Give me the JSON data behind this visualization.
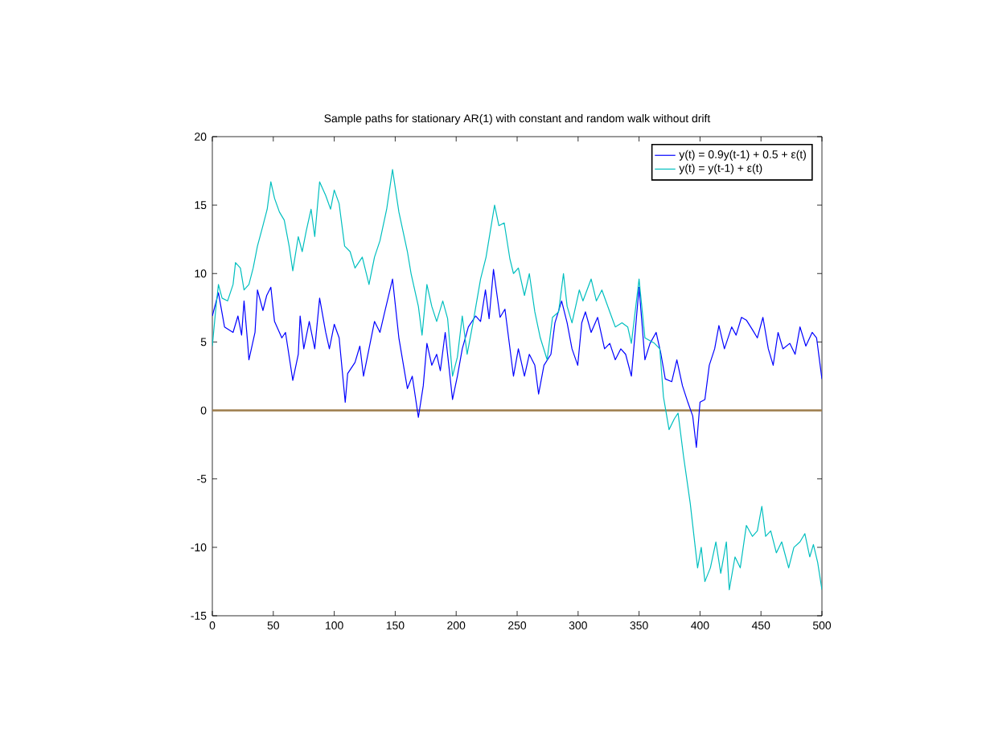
{
  "chart_data": {
    "type": "line",
    "title": "Sample paths for stationary AR(1) with constant and random walk without drift",
    "xlim": [
      0,
      500
    ],
    "xticks": [
      0,
      50,
      100,
      150,
      200,
      250,
      300,
      350,
      400,
      450,
      500
    ],
    "ylim": [
      -15,
      20
    ],
    "yticks": [
      -15,
      -10,
      -5,
      0,
      5,
      10,
      15,
      20
    ],
    "grid": false,
    "legend": "top right",
    "marker": "none",
    "line_style": "solid",
    "ref_lines": [
      {
        "axis": "y",
        "value": 0,
        "color": "#9c7b4a"
      }
    ],
    "series": [
      {
        "name": "y(t) = 0.9y(t-1) + 0.5 + ε(t)",
        "color": "#0000ff",
        "x": [
          0,
          5,
          10,
          17,
          21,
          24,
          26,
          29,
          30,
          35,
          37,
          41.5,
          44.6,
          48,
          51,
          57,
          60,
          66,
          70.5,
          72,
          75,
          79.5,
          84,
          88,
          93,
          96,
          100,
          104,
          109,
          111,
          117,
          121,
          124,
          128.5,
          133,
          137.5,
          140.6,
          147.8,
          153,
          160,
          164,
          169,
          173,
          176,
          180,
          184,
          187,
          191,
          197,
          201,
          205,
          210,
          216,
          220,
          224,
          227,
          230.6,
          236,
          240,
          247,
          251,
          256,
          260,
          264.5,
          267.6,
          272,
          277.7,
          281,
          286.5,
          291,
          295,
          299.7,
          303,
          306,
          310.7,
          316,
          321.7,
          326,
          330.5,
          335,
          339,
          343.7,
          350,
          354.8,
          359,
          364,
          368,
          371.5,
          376.8,
          381,
          385.6,
          390,
          394,
          397,
          400,
          404,
          407.6,
          412,
          415.5,
          420,
          426,
          429.6,
          434,
          438,
          443,
          447,
          451.6,
          456,
          460,
          464,
          468,
          473.6,
          478,
          482,
          486.8,
          492,
          495.6,
          500
        ],
        "values": [
          6.9,
          8.6,
          6.1,
          5.7,
          6.9,
          5.5,
          8.0,
          4.9,
          3.7,
          5.7,
          8.8,
          7.3,
          8.4,
          9.0,
          6.5,
          5.3,
          5.7,
          2.2,
          4.1,
          6.9,
          4.5,
          6.5,
          4.5,
          8.2,
          5.7,
          4.5,
          6.3,
          5.3,
          0.6,
          2.7,
          3.5,
          4.7,
          2.5,
          4.5,
          6.5,
          5.7,
          6.9,
          9.6,
          5.3,
          1.6,
          2.5,
          -0.5,
          1.8,
          4.9,
          3.3,
          4.1,
          2.9,
          5.7,
          0.8,
          2.5,
          4.5,
          6.1,
          6.9,
          6.5,
          8.8,
          6.7,
          10.3,
          6.8,
          7.4,
          2.5,
          4.5,
          2.5,
          4.1,
          3.3,
          1.2,
          3.3,
          4.1,
          6.4,
          8.0,
          6.4,
          4.5,
          3.3,
          6.4,
          7.2,
          5.7,
          6.8,
          4.5,
          4.9,
          3.7,
          4.5,
          4.1,
          2.5,
          9.0,
          3.7,
          4.9,
          5.7,
          4.1,
          2.3,
          2.1,
          3.7,
          1.8,
          0.6,
          -0.4,
          -2.7,
          0.6,
          0.8,
          3.3,
          4.5,
          6.2,
          4.5,
          6.1,
          5.5,
          6.8,
          6.6,
          5.9,
          5.3,
          6.8,
          4.5,
          3.3,
          5.7,
          4.5,
          4.9,
          4.1,
          6.1,
          4.7,
          5.7,
          5.3,
          2.3
        ]
      },
      {
        "name": "y(t) = y(t-1) + ε(t)",
        "color": "#00bfbf",
        "x": [
          0,
          2.7,
          5,
          8,
          12.5,
          17,
          19,
          23,
          26,
          30,
          33.5,
          37,
          41.5,
          45,
          48,
          51,
          55,
          59,
          63,
          66,
          70.5,
          73.7,
          77,
          81,
          84,
          88,
          93,
          97,
          100,
          104,
          108.5,
          113,
          117,
          123,
          128.5,
          133,
          137.5,
          143,
          147.8,
          153,
          160,
          163,
          169,
          172,
          176,
          180,
          184,
          189,
          193,
          197,
          201,
          205,
          209,
          214,
          220,
          224.5,
          231.5,
          235,
          239.4,
          244,
          247,
          251,
          256,
          260,
          264.5,
          269,
          274.6,
          279,
          284,
          288,
          291,
          295,
          301,
          304,
          310.7,
          315,
          319.5,
          326,
          330.5,
          336,
          340.7,
          343.7,
          350,
          354.8,
          362.7,
          367,
          370,
          374.6,
          379,
          382,
          386.4,
          392,
          398,
          401,
          404,
          408.5,
          413,
          417,
          421.6,
          424,
          428.7,
          433,
          438,
          443,
          447,
          450.7,
          453.8,
          458,
          462.6,
          467,
          472.7,
          477,
          482,
          486,
          490,
          493,
          496.5,
          500
        ],
        "values": [
          4.7,
          7.3,
          9.2,
          8.2,
          8.0,
          9.2,
          10.8,
          10.4,
          8.8,
          9.2,
          10.4,
          12.0,
          13.5,
          14.7,
          16.7,
          15.5,
          14.5,
          13.9,
          12.0,
          10.2,
          12.7,
          11.6,
          13.1,
          14.7,
          12.7,
          16.7,
          15.7,
          14.7,
          16.1,
          15.1,
          12.0,
          11.6,
          10.4,
          11.2,
          9.2,
          11.2,
          12.4,
          14.7,
          17.6,
          14.5,
          11.6,
          10.0,
          7.6,
          5.5,
          9.2,
          7.6,
          6.5,
          8.0,
          6.7,
          2.5,
          3.9,
          6.9,
          4.1,
          6.5,
          9.6,
          11.2,
          15.0,
          13.5,
          13.7,
          11.1,
          10.0,
          10.4,
          8.4,
          10.0,
          7.2,
          5.3,
          3.7,
          6.8,
          7.2,
          10.0,
          7.6,
          6.4,
          8.8,
          8.0,
          9.6,
          8.0,
          8.8,
          7.2,
          6.1,
          6.4,
          6.1,
          4.9,
          9.6,
          5.3,
          4.9,
          4.5,
          1.0,
          -1.4,
          -0.6,
          -0.2,
          -3.3,
          -6.8,
          -11.5,
          -10.0,
          -12.5,
          -11.5,
          -9.6,
          -11.9,
          -9.6,
          -13.1,
          -10.7,
          -11.5,
          -8.4,
          -9.2,
          -8.8,
          -7.0,
          -9.2,
          -8.8,
          -10.4,
          -9.6,
          -11.5,
          -10.0,
          -9.6,
          -9.0,
          -10.7,
          -9.8,
          -11.1,
          -13.1
        ]
      }
    ]
  }
}
